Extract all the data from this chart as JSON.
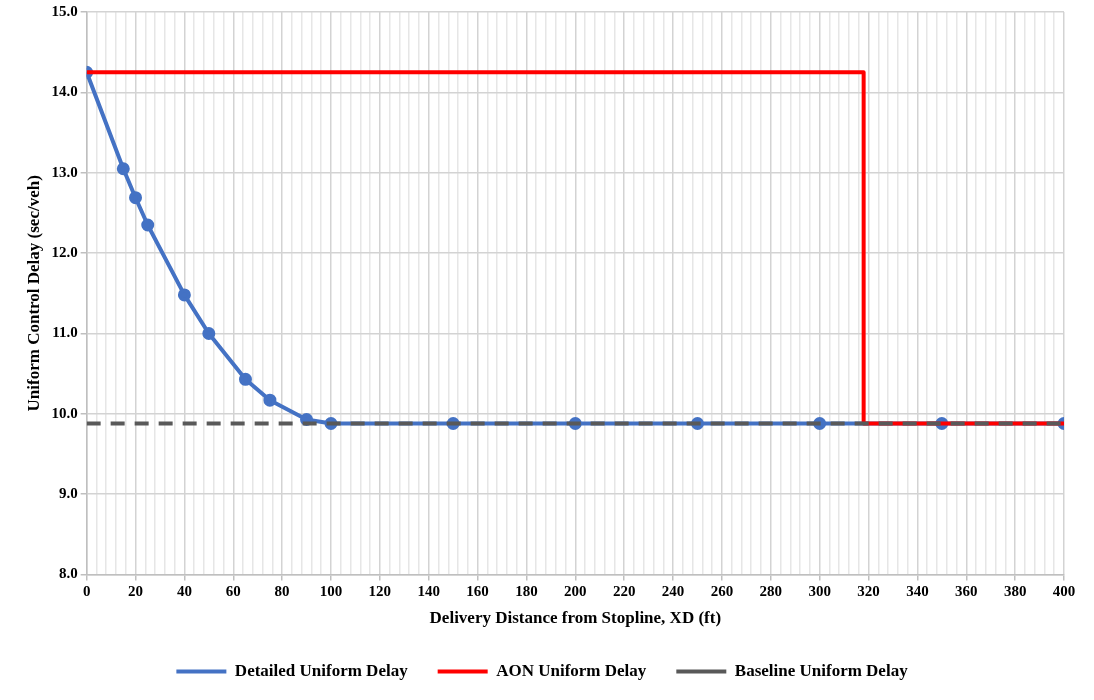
{
  "chart_data": {
    "type": "line",
    "xlabel": "Delivery Distance from Stopline, XD (ft)",
    "ylabel": "Uniform Control Delay (sec/veh)",
    "xlim": [
      0,
      400
    ],
    "xticks": [
      0,
      {
        "value": 4,
        "label": null
      },
      {
        "value": 8,
        "label": null
      },
      {
        "value": 12,
        "label": null
      },
      {
        "value": 16,
        "label": null
      },
      20,
      {
        "value": 24,
        "label": null
      },
      {
        "value": 28,
        "label": null
      },
      {
        "value": 32,
        "label": null
      },
      {
        "value": 36,
        "label": null
      },
      40,
      {
        "value": 44,
        "label": null
      },
      {
        "value": 48,
        "label": null
      },
      {
        "value": 52,
        "label": null
      },
      {
        "value": 56,
        "label": null
      },
      60,
      {
        "value": 64,
        "label": null
      },
      {
        "value": 68,
        "label": null
      },
      {
        "value": 72,
        "label": null
      },
      {
        "value": 76,
        "label": null
      },
      80,
      {
        "value": 84,
        "label": null
      },
      {
        "value": 88,
        "label": null
      },
      {
        "value": 92,
        "label": null
      },
      {
        "value": 96,
        "label": null
      },
      100,
      {
        "value": 104,
        "label": null
      },
      {
        "value": 108,
        "label": null
      },
      {
        "value": 112,
        "label": null
      },
      {
        "value": 116,
        "label": null
      },
      120,
      {
        "value": 124,
        "label": null
      },
      {
        "value": 128,
        "label": null
      },
      {
        "value": 132,
        "label": null
      },
      {
        "value": 136,
        "label": null
      },
      140,
      {
        "value": 144,
        "label": null
      },
      {
        "value": 148,
        "label": null
      },
      {
        "value": 152,
        "label": null
      },
      {
        "value": 156,
        "label": null
      },
      160,
      {
        "value": 164,
        "label": null
      },
      {
        "value": 168,
        "label": null
      },
      {
        "value": 172,
        "label": null
      },
      {
        "value": 176,
        "label": null
      },
      180,
      {
        "value": 184,
        "label": null
      },
      {
        "value": 188,
        "label": null
      },
      {
        "value": 192,
        "label": null
      },
      {
        "value": 196,
        "label": null
      },
      200,
      {
        "value": 204,
        "label": null
      },
      {
        "value": 208,
        "label": null
      },
      {
        "value": 212,
        "label": null
      },
      {
        "value": 216,
        "label": null
      },
      220,
      {
        "value": 224,
        "label": null
      },
      {
        "value": 228,
        "label": null
      },
      {
        "value": 232,
        "label": null
      },
      {
        "value": 236,
        "label": null
      },
      240,
      {
        "value": 244,
        "label": null
      },
      {
        "value": 248,
        "label": null
      },
      {
        "value": 252,
        "label": null
      },
      {
        "value": 256,
        "label": null
      },
      260,
      {
        "value": 264,
        "label": null
      },
      {
        "value": 268,
        "label": null
      },
      {
        "value": 272,
        "label": null
      },
      {
        "value": 276,
        "label": null
      },
      280,
      {
        "value": 284,
        "label": null
      },
      {
        "value": 288,
        "label": null
      },
      {
        "value": 292,
        "label": null
      },
      {
        "value": 296,
        "label": null
      },
      300,
      {
        "value": 304,
        "label": null
      },
      {
        "value": 308,
        "label": null
      },
      {
        "value": 312,
        "label": null
      },
      {
        "value": 316,
        "label": null
      },
      320,
      {
        "value": 324,
        "label": null
      },
      {
        "value": 328,
        "label": null
      },
      {
        "value": 332,
        "label": null
      },
      {
        "value": 336,
        "label": null
      },
      340,
      {
        "value": 344,
        "label": null
      },
      {
        "value": 348,
        "label": null
      },
      {
        "value": 352,
        "label": null
      },
      {
        "value": 356,
        "label": null
      },
      360,
      {
        "value": 364,
        "label": null
      },
      {
        "value": 368,
        "label": null
      },
      {
        "value": 372,
        "label": null
      },
      {
        "value": 376,
        "label": null
      },
      380,
      {
        "value": 384,
        "label": null
      },
      {
        "value": 388,
        "label": null
      },
      {
        "value": 392,
        "label": null
      },
      {
        "value": 396,
        "label": null
      },
      400
    ],
    "ylim": [
      8,
      15
    ],
    "yticks": [
      {
        "value": 8,
        "label": "8.0"
      },
      {
        "value": 9,
        "label": "9.0"
      },
      {
        "value": 10,
        "label": "10.0"
      },
      {
        "value": 11,
        "label": "11.0"
      },
      {
        "value": 12,
        "label": "12.0"
      },
      {
        "value": 13,
        "label": "13.0"
      },
      {
        "value": 14,
        "label": "14.0"
      },
      {
        "value": 15,
        "label": "15.0"
      }
    ],
    "grid": true,
    "legend": "bottom",
    "series": [
      {
        "name": "Detailed Uniform Delay",
        "color": "#4472c4",
        "marker": "circle",
        "line_style": "solid",
        "x": [
          0,
          15,
          20,
          25,
          40,
          50,
          65,
          75,
          90,
          100,
          150,
          200,
          250,
          300,
          350,
          400
        ],
        "values": [
          14.25,
          13.05,
          12.69,
          12.35,
          11.48,
          11.0,
          10.43,
          10.17,
          9.93,
          9.88,
          9.88,
          9.88,
          9.88,
          9.88,
          9.88,
          9.88
        ]
      },
      {
        "name": "AON Uniform Delay",
        "color": "#ff0000",
        "type": "step",
        "marker": "none",
        "line_style": "solid",
        "x": [
          0,
          318,
          400
        ],
        "values": [
          14.25,
          9.88,
          9.88
        ]
      },
      {
        "name": "Baseline Uniform Delay",
        "color": "#595959",
        "marker": "none",
        "line_style": "dashed",
        "x": [
          0,
          400
        ],
        "values": [
          9.88,
          9.88
        ]
      }
    ]
  }
}
